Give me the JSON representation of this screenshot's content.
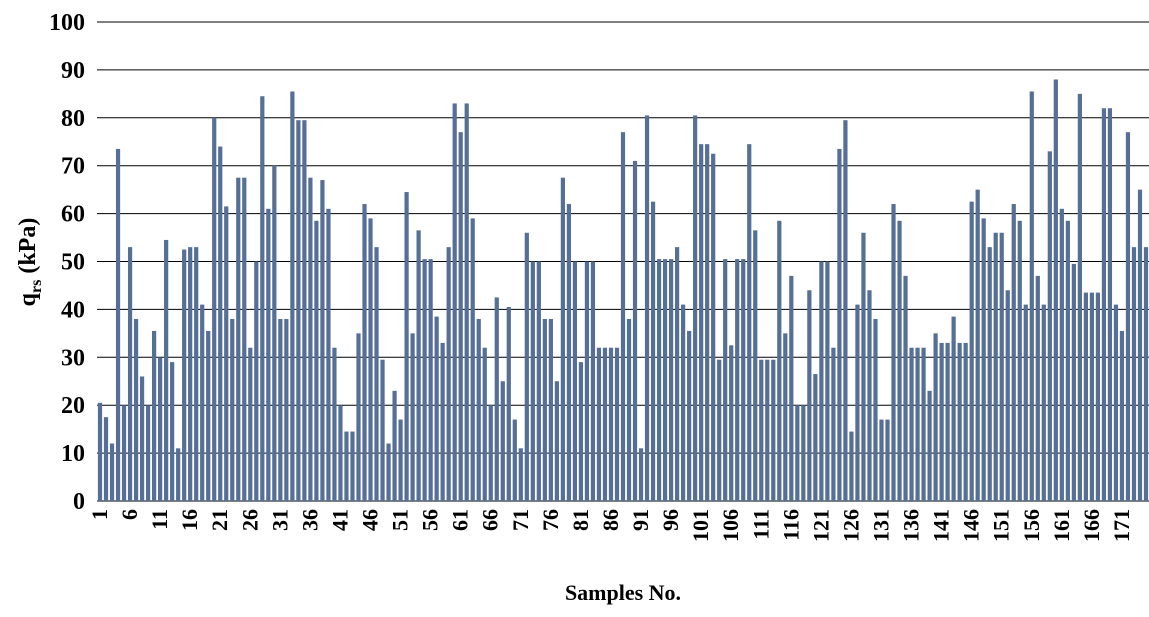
{
  "chart_data": {
    "type": "bar",
    "y_label": [
      "q",
      "rs",
      " (kPa)"
    ],
    "x_label": "Samples No.",
    "color": "#566f96",
    "grid": true,
    "ylim": [
      0,
      100
    ],
    "yticks": [
      0,
      10,
      20,
      30,
      40,
      50,
      60,
      70,
      80,
      90,
      100
    ],
    "categories": [
      1,
      null,
      null,
      null,
      null,
      6,
      null,
      null,
      null,
      null,
      11,
      null,
      null,
      null,
      null,
      16,
      null,
      null,
      null,
      null,
      21,
      null,
      null,
      null,
      null,
      26,
      null,
      null,
      null,
      null,
      31,
      null,
      null,
      null,
      null,
      36,
      null,
      null,
      null,
      null,
      41,
      null,
      null,
      null,
      null,
      46,
      null,
      null,
      null,
      null,
      51,
      null,
      null,
      null,
      null,
      56,
      null,
      null,
      null,
      null,
      61,
      null,
      null,
      null,
      null,
      66,
      null,
      null,
      null,
      null,
      71,
      null,
      null,
      null,
      null,
      76,
      null,
      null,
      null,
      null,
      81,
      null,
      null,
      null,
      null,
      86,
      null,
      null,
      null,
      null,
      91,
      null,
      null,
      null,
      null,
      96,
      null,
      null,
      null,
      null,
      101,
      null,
      null,
      null,
      null,
      106,
      null,
      null,
      null,
      null,
      111,
      null,
      null,
      null,
      null,
      116,
      null,
      null,
      null,
      null,
      121,
      null,
      null,
      null,
      null,
      126,
      null,
      null,
      null,
      null,
      131,
      null,
      null,
      null,
      null,
      136,
      null,
      null,
      null,
      null,
      141,
      null,
      null,
      null,
      null,
      146,
      null,
      null,
      null,
      null,
      151,
      null,
      null,
      null,
      null,
      156,
      null,
      null,
      null,
      null,
      161,
      null,
      null,
      null,
      null,
      166,
      null,
      null,
      null,
      null,
      171,
      null,
      null,
      null,
      null
    ],
    "values": [
      20.5,
      17.5,
      12,
      73.5,
      20,
      53,
      38,
      26,
      20,
      35.5,
      30,
      54.5,
      29,
      11,
      52.5,
      53,
      53,
      41,
      35.5,
      80,
      74,
      61.5,
      38,
      67.5,
      67.5,
      32,
      50,
      84.5,
      61,
      70,
      38,
      38,
      85.5,
      79.5,
      79.5,
      67.5,
      58.5,
      67,
      61,
      32,
      20,
      14.5,
      14.5,
      35,
      62,
      59,
      53,
      29.5,
      12,
      23,
      17,
      64.5,
      35,
      56.5,
      50.5,
      50.5,
      38.5,
      33,
      53,
      83,
      77,
      83,
      59,
      38,
      32,
      20,
      42.5,
      25,
      40.5,
      17,
      11,
      56,
      50,
      50,
      38,
      38,
      25,
      67.5,
      62,
      50,
      29,
      50,
      50,
      32,
      32,
      32,
      32,
      77,
      38,
      71,
      11,
      80.5,
      62.5,
      50.5,
      50.5,
      50.5,
      53,
      41,
      35.5,
      80.5,
      74.5,
      74.5,
      72.5,
      29.5,
      50.5,
      32.5,
      50.5,
      50.5,
      74.5,
      56.5,
      29.5,
      29.5,
      29.5,
      58.5,
      35,
      47,
      20,
      20,
      44,
      26.5,
      50,
      50,
      32,
      73.5,
      79.5,
      14.5,
      41,
      56,
      44,
      38,
      17,
      17,
      62,
      58.5,
      47,
      32,
      32,
      32,
      23,
      35,
      33,
      33,
      38.5,
      33,
      33,
      62.5,
      65,
      59,
      53,
      56,
      56,
      44,
      62,
      58.5,
      41,
      85.5,
      47,
      41,
      73,
      88,
      61,
      58.5,
      49.5,
      85,
      43.5,
      43.5,
      43.5,
      82,
      82,
      41,
      35.5,
      77,
      53,
      65,
      53
    ]
  }
}
